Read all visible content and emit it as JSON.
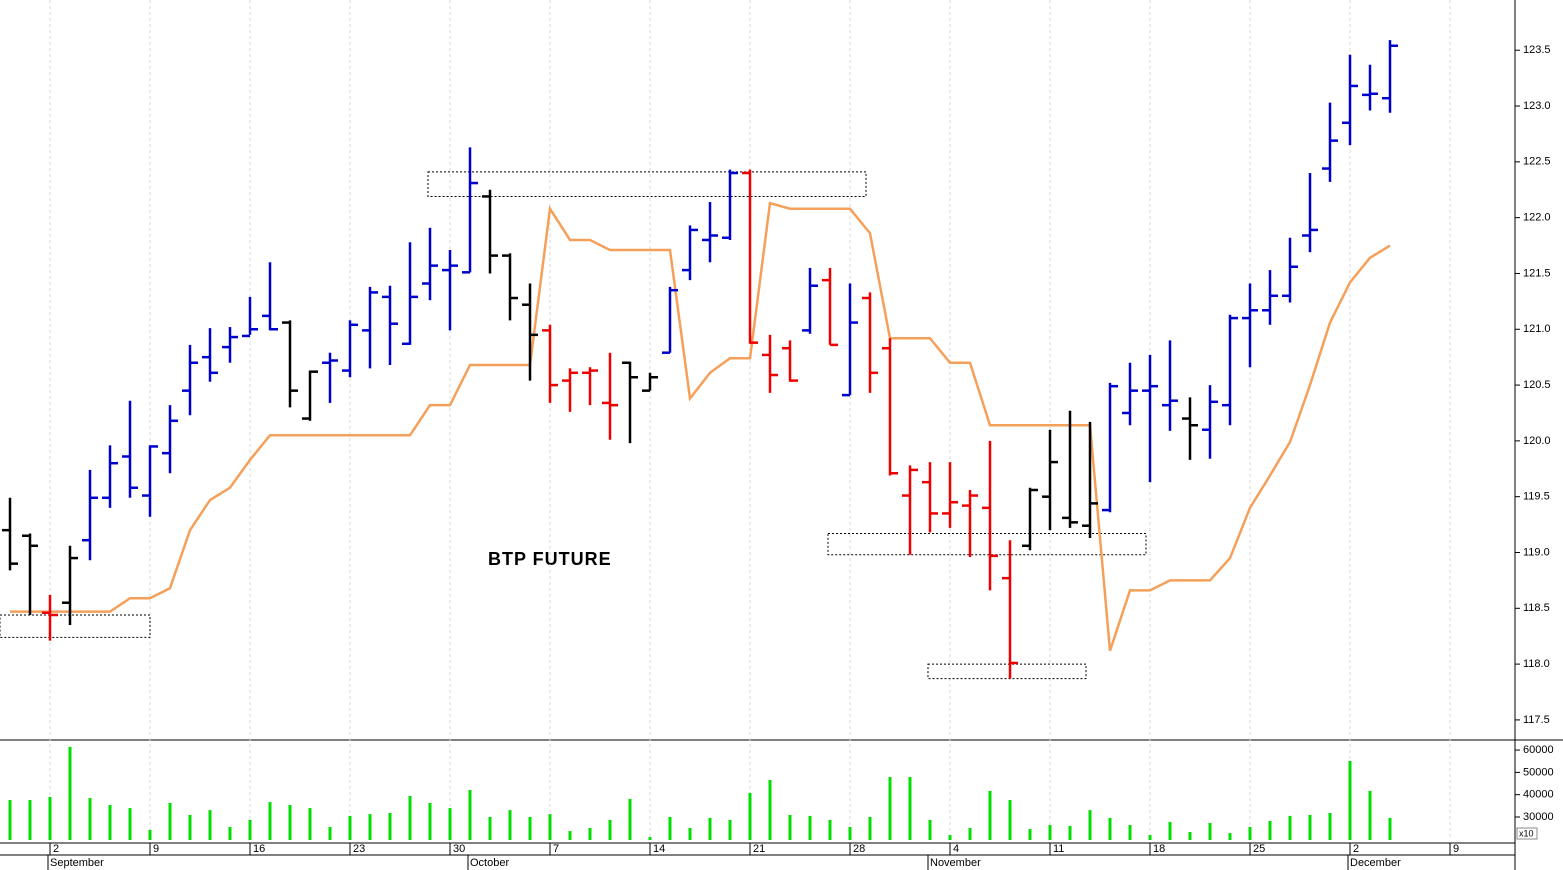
{
  "chart_data": {
    "type": "ohlc",
    "title": "BTP FUTURE",
    "x": [
      -2,
      -1,
      0,
      1,
      2,
      3,
      4,
      5,
      6,
      7,
      8,
      9,
      10,
      11,
      12,
      13,
      14,
      15,
      16,
      17,
      18,
      19,
      20,
      21,
      22,
      23,
      24,
      25,
      26,
      27,
      28,
      29,
      30,
      31,
      32,
      33,
      34,
      35,
      36,
      37,
      38,
      39,
      40,
      41,
      42,
      43,
      44,
      45,
      46,
      47,
      48,
      49,
      50,
      51,
      52,
      53,
      54,
      55,
      56,
      57,
      58,
      59,
      60,
      61,
      62,
      63,
      64,
      65,
      66,
      67
    ],
    "open": [
      119.2,
      119.15,
      118.46,
      118.55,
      119.11,
      119.49,
      119.86,
      119.51,
      119.89,
      120.45,
      120.75,
      120.84,
      120.94,
      121.12,
      121.06,
      120.2,
      120.7,
      120.63,
      120.99,
      121.29,
      120.87,
      121.41,
      121.53,
      121.51,
      122.19,
      121.66,
      121.22,
      120.99,
      120.54,
      120.61,
      120.34,
      120.7,
      120.45,
      120.79,
      121.53,
      121.8,
      121.82,
      122.4,
      120.77,
      120.83,
      120.99,
      121.44,
      120.41,
      121.28,
      120.83,
      119.51,
      119.63,
      119.35,
      119.42,
      119.4,
      118.77,
      119.06,
      119.5,
      119.31,
      119.24,
      119.38,
      120.25,
      120.45,
      120.32,
      120.2,
      120.1,
      120.32,
      121.1,
      121.17,
      121.3,
      121.84,
      122.44,
      122.85,
      123.1,
      123.07
    ],
    "high": [
      119.49,
      119.17,
      118.62,
      119.06,
      119.74,
      119.96,
      120.36,
      119.96,
      120.32,
      120.86,
      121.01,
      121.02,
      121.29,
      121.6,
      121.08,
      120.63,
      120.79,
      121.08,
      121.38,
      121.39,
      121.78,
      121.91,
      121.71,
      122.63,
      122.25,
      121.68,
      121.41,
      121.04,
      120.65,
      120.66,
      120.79,
      120.71,
      120.61,
      121.38,
      121.93,
      122.14,
      122.43,
      122.43,
      120.95,
      120.9,
      121.55,
      121.55,
      121.41,
      121.33,
      120.92,
      119.78,
      119.81,
      119.81,
      119.56,
      120.0,
      119.11,
      119.58,
      120.1,
      120.27,
      120.17,
      120.52,
      120.7,
      120.77,
      120.9,
      120.39,
      120.5,
      121.13,
      121.41,
      121.53,
      121.82,
      122.4,
      123.03,
      123.46,
      123.37,
      123.59
    ],
    "low": [
      118.84,
      118.44,
      118.21,
      118.35,
      118.93,
      119.4,
      119.49,
      119.32,
      119.71,
      120.23,
      120.53,
      120.7,
      120.95,
      120.99,
      120.3,
      120.18,
      120.34,
      120.57,
      120.65,
      120.68,
      120.86,
      121.26,
      120.99,
      121.51,
      121.5,
      121.08,
      120.54,
      120.34,
      120.26,
      120.32,
      120.01,
      119.98,
      120.45,
      120.79,
      121.44,
      121.6,
      121.8,
      120.87,
      120.43,
      120.53,
      120.96,
      120.86,
      120.41,
      120.43,
      119.69,
      118.98,
      119.18,
      119.22,
      118.96,
      118.66,
      117.87,
      119.02,
      119.2,
      119.22,
      119.13,
      119.36,
      120.14,
      119.63,
      120.09,
      119.83,
      119.84,
      120.14,
      120.66,
      121.04,
      121.24,
      121.69,
      122.32,
      122.65,
      122.96,
      122.94
    ],
    "close": [
      118.9,
      119.06,
      118.44,
      118.95,
      119.49,
      119.8,
      119.58,
      119.95,
      120.18,
      120.7,
      120.61,
      120.93,
      121.0,
      121.0,
      120.45,
      120.62,
      120.72,
      121.04,
      121.33,
      121.05,
      121.29,
      121.57,
      121.57,
      122.31,
      121.66,
      121.28,
      120.95,
      120.5,
      120.61,
      120.63,
      120.32,
      120.57,
      120.57,
      121.35,
      121.89,
      121.84,
      122.4,
      120.88,
      120.59,
      120.54,
      121.39,
      120.86,
      121.06,
      120.61,
      119.71,
      119.74,
      119.35,
      119.45,
      119.51,
      118.97,
      118.01,
      119.56,
      119.81,
      119.27,
      119.44,
      120.49,
      120.45,
      120.49,
      120.36,
      120.14,
      120.35,
      121.1,
      121.17,
      121.3,
      121.56,
      121.89,
      122.69,
      123.18,
      123.11,
      123.54
    ],
    "bar_colors": [
      "#000000",
      "#000000",
      "#ee0000",
      "#000000",
      "#0000cc",
      "#0000cc",
      "#0000cc",
      "#0000cc",
      "#0000cc",
      "#0000cc",
      "#0000cc",
      "#0000cc",
      "#0000cc",
      "#0000cc",
      "#000000",
      "#000000",
      "#0000cc",
      "#0000cc",
      "#0000cc",
      "#0000cc",
      "#0000cc",
      "#0000cc",
      "#0000cc",
      "#0000cc",
      "#000000",
      "#000000",
      "#000000",
      "#ee0000",
      "#ee0000",
      "#ee0000",
      "#ee0000",
      "#000000",
      "#000000",
      "#0000cc",
      "#0000cc",
      "#0000cc",
      "#0000cc",
      "#ee0000",
      "#ee0000",
      "#ee0000",
      "#0000cc",
      "#ee0000",
      "#0000cc",
      "#ee0000",
      "#ee0000",
      "#ee0000",
      "#ee0000",
      "#ee0000",
      "#ee0000",
      "#ee0000",
      "#ee0000",
      "#000000",
      "#000000",
      "#000000",
      "#000000",
      "#0000cc",
      "#0000cc",
      "#0000cc",
      "#0000cc",
      "#000000",
      "#0000cc",
      "#0000cc",
      "#0000cc",
      "#0000cc",
      "#0000cc",
      "#0000cc",
      "#0000cc",
      "#0000cc",
      "#0000cc",
      "#0000cc"
    ],
    "line": {
      "color": "#f5a05a",
      "values": [
        118.47,
        118.47,
        118.47,
        118.47,
        118.47,
        118.47,
        118.59,
        118.59,
        118.68,
        119.2,
        119.47,
        119.58,
        119.83,
        120.05,
        120.05,
        120.05,
        120.05,
        120.05,
        120.05,
        120.05,
        120.05,
        120.32,
        120.32,
        120.68,
        120.68,
        120.68,
        120.68,
        122.08,
        121.8,
        121.8,
        121.71,
        121.71,
        121.71,
        121.71,
        120.38,
        120.61,
        120.74,
        120.74,
        122.13,
        122.08,
        122.08,
        122.08,
        122.08,
        121.86,
        120.92,
        120.92,
        120.92,
        120.7,
        120.7,
        120.14,
        120.14,
        120.14,
        120.14,
        120.14,
        120.14,
        118.12,
        118.66,
        118.66,
        118.75,
        118.75,
        118.75,
        118.95,
        119.4,
        119.69,
        119.99,
        120.5,
        121.06,
        121.42,
        121.64,
        121.75
      ]
    },
    "boxes": [
      {
        "x": [
          -2.5,
          5
        ],
        "y": [
          118.24,
          118.44
        ]
      },
      {
        "x": [
          18.9,
          40.8
        ],
        "y": [
          122.19,
          122.41
        ]
      },
      {
        "x": [
          38.9,
          54.8
        ],
        "y": [
          118.98,
          119.17
        ]
      },
      {
        "x": [
          43.9,
          51.8
        ],
        "y": [
          117.87,
          118.0
        ]
      }
    ],
    "xlim": [
      -2.5,
      73.25
    ],
    "xticks": [
      {
        "value": 0,
        "label": "2"
      },
      {
        "value": 5,
        "label": "9"
      },
      {
        "value": 10,
        "label": "16"
      },
      {
        "value": 15,
        "label": "23"
      },
      {
        "value": 20,
        "label": "30"
      },
      {
        "value": 25,
        "label": "7"
      },
      {
        "value": 30,
        "label": "14"
      },
      {
        "value": 35,
        "label": "21"
      },
      {
        "value": 40,
        "label": "28"
      },
      {
        "value": 45,
        "label": "4"
      },
      {
        "value": 50,
        "label": "11"
      },
      {
        "value": 55,
        "label": "18"
      },
      {
        "value": 60,
        "label": "25"
      },
      {
        "value": 65,
        "label": "2"
      },
      {
        "value": 70,
        "label": "9"
      }
    ],
    "month_labels": [
      {
        "value": 0,
        "label": "September"
      },
      {
        "value": 21,
        "label": "October"
      },
      {
        "value": 44,
        "label": "November"
      },
      {
        "value": 65,
        "label": "December"
      }
    ],
    "ylim": [
      117.32,
      123.95
    ],
    "yticks": [
      {
        "value": 117.5,
        "label": "117.5"
      },
      {
        "value": 118,
        "label": "118.0"
      },
      118.5,
      {
        "value": 119,
        "label": "119.0"
      },
      119.5,
      {
        "value": 120,
        "label": "120.0"
      },
      120.5,
      {
        "value": 121,
        "label": "121.0"
      },
      121.5,
      {
        "value": 122,
        "label": "122.0"
      },
      122.5,
      {
        "value": 123,
        "label": "123.0"
      },
      123.5
    ],
    "grid": true,
    "volume": {
      "color": "#00dd00",
      "ylim": [
        19700,
        64500
      ],
      "yticks": [
        30000,
        40000,
        50000,
        60000
      ],
      "multiplier_label": "x10",
      "values": [
        37600,
        37600,
        39000,
        61400,
        38500,
        35400,
        34000,
        24200,
        36300,
        30900,
        33100,
        25500,
        28700,
        36700,
        35400,
        34000,
        25500,
        30500,
        31300,
        31800,
        39400,
        36300,
        34000,
        42100,
        30000,
        33100,
        30000,
        31300,
        23700,
        25100,
        28700,
        38100,
        21000,
        30000,
        25100,
        29600,
        28700,
        40800,
        46600,
        30900,
        30500,
        28700,
        25500,
        30000,
        47900,
        47900,
        28700,
        21900,
        25100,
        41700,
        37600,
        24600,
        26400,
        26000,
        33100,
        29600,
        26400,
        21900,
        27800,
        23300,
        27300,
        22800,
        25500,
        28200,
        30500,
        30900,
        31800,
        55100,
        41700,
        29600
      ]
    }
  }
}
